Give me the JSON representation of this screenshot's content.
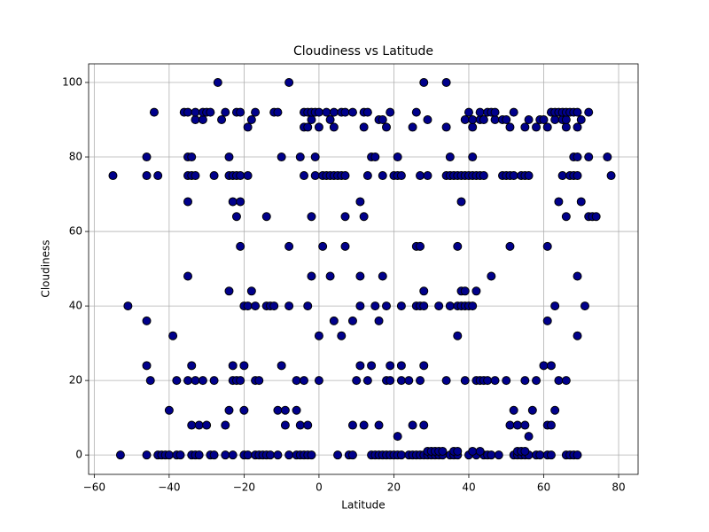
{
  "chart_data": {
    "type": "scatter",
    "title": "Cloudiness vs Latitude",
    "x_label": "Latitude",
    "y_label": "Cloudiness",
    "color": "#00008b",
    "edge_color": "#000000",
    "grid": true,
    "xlim": [
      -61.5,
      85.2
    ],
    "ylim": [
      -5.2,
      105
    ],
    "xticks": [
      {
        "value": -60,
        "label": "−60"
      },
      {
        "value": -40,
        "label": "−40"
      },
      {
        "value": -20,
        "label": "−20"
      },
      0,
      20,
      40,
      60,
      80
    ],
    "yticks": [
      0,
      20,
      40,
      60,
      80,
      100
    ],
    "x": [
      -53,
      -46,
      -43,
      -42,
      -41,
      -40,
      -38,
      -37,
      -34,
      -33,
      -32,
      -29,
      -28,
      -25,
      -23,
      -20,
      -19,
      -17,
      -16,
      -15,
      -14,
      -13,
      -11,
      -8,
      -6,
      -5,
      -4,
      -3,
      -2,
      5,
      8,
      9,
      14,
      15,
      16,
      17,
      18,
      19,
      20,
      21,
      22,
      24,
      25,
      26,
      27,
      28,
      29,
      30,
      31,
      32,
      33,
      35,
      36,
      37,
      40,
      42,
      44,
      45,
      46,
      48,
      52,
      53,
      54,
      55,
      56,
      58,
      59,
      61,
      62,
      66,
      67,
      68,
      69,
      29,
      30,
      31,
      32,
      33,
      36,
      37,
      41,
      43,
      53,
      54,
      55,
      21,
      56,
      -34,
      -32,
      -30,
      -25,
      -9,
      -5,
      -3,
      9,
      12,
      16,
      25,
      28,
      51,
      53,
      55,
      61,
      62,
      -40,
      -24,
      -20,
      -11,
      -9,
      -6,
      52,
      57,
      63,
      -45,
      -38,
      -35,
      -33,
      -31,
      -28,
      -23,
      -22,
      -21,
      -17,
      -16,
      -6,
      -4,
      0,
      10,
      13,
      18,
      19,
      22,
      24,
      27,
      34,
      39,
      42,
      43,
      44,
      45,
      47,
      50,
      55,
      58,
      64,
      66,
      -46,
      -34,
      -23,
      -20,
      -10,
      11,
      14,
      19,
      22,
      28,
      60,
      62,
      -39,
      0,
      6,
      37,
      69,
      -46,
      4,
      9,
      16,
      61,
      -51,
      -20,
      -19,
      -17,
      -14,
      -13,
      -12,
      -8,
      -3,
      11,
      15,
      18,
      22,
      26,
      27,
      28,
      32,
      35,
      37,
      38,
      39,
      40,
      41,
      63,
      71,
      -24,
      -18,
      28,
      38,
      39,
      42,
      -35,
      -2,
      3,
      11,
      17,
      46,
      69,
      -21,
      -8,
      1,
      7,
      26,
      27,
      37,
      51,
      61,
      -22,
      -14,
      -2,
      7,
      12,
      66,
      72,
      73,
      74,
      -35,
      -23,
      -21,
      11,
      38,
      64,
      70,
      -55,
      -46,
      -43,
      -35,
      -34,
      -33,
      -28,
      -24,
      -23,
      -22,
      -21,
      -19,
      -4,
      -1,
      1,
      2,
      3,
      4,
      5,
      6,
      7,
      13,
      17,
      20,
      21,
      22,
      27,
      29,
      34,
      35,
      36,
      37,
      38,
      39,
      40,
      41,
      42,
      43,
      44,
      49,
      50,
      51,
      52,
      54,
      55,
      56,
      65,
      67,
      68,
      69,
      78,
      -46,
      -35,
      -34,
      -24,
      -10,
      -5,
      -1,
      14,
      15,
      21,
      35,
      41,
      68,
      69,
      72,
      77,
      -19,
      -4,
      -3,
      0,
      4,
      12,
      18,
      25,
      34,
      41,
      51,
      55,
      58,
      61,
      66,
      69,
      -33,
      -31,
      -26,
      -18,
      -2,
      3,
      16,
      17,
      29,
      39,
      41,
      43,
      44,
      47,
      49,
      50,
      56,
      59,
      60,
      63,
      65,
      66,
      70,
      -44,
      -36,
      -35,
      -33,
      -31,
      -30,
      -29,
      -25,
      -22,
      -21,
      -17,
      -12,
      -11,
      -4,
      -3,
      -2,
      -1,
      0,
      2,
      4,
      6,
      7,
      9,
      12,
      13,
      19,
      26,
      40,
      43,
      45,
      46,
      47,
      52,
      62,
      63,
      64,
      65,
      66,
      67,
      68,
      69,
      72,
      -27,
      -8,
      28,
      34
    ],
    "values": [
      0,
      0,
      0,
      0,
      0,
      0,
      0,
      0,
      0,
      0,
      0,
      0,
      0,
      0,
      0,
      0,
      0,
      0,
      0,
      0,
      0,
      0,
      0,
      0,
      0,
      0,
      0,
      0,
      0,
      0,
      0,
      0,
      0,
      0,
      0,
      0,
      0,
      0,
      0,
      0,
      0,
      0,
      0,
      0,
      0,
      0,
      0,
      0,
      0,
      0,
      0,
      0,
      0,
      0,
      0,
      0,
      0,
      0,
      0,
      0,
      0,
      0,
      0,
      0,
      0,
      0,
      0,
      0,
      0,
      0,
      0,
      0,
      0,
      1,
      1,
      1,
      1,
      1,
      1,
      1,
      1,
      1,
      1,
      1,
      1,
      5,
      5,
      8,
      8,
      8,
      8,
      8,
      8,
      8,
      8,
      8,
      8,
      8,
      8,
      8,
      8,
      8,
      8,
      8,
      12,
      12,
      12,
      12,
      12,
      12,
      12,
      12,
      12,
      20,
      20,
      20,
      20,
      20,
      20,
      20,
      20,
      20,
      20,
      20,
      20,
      20,
      20,
      20,
      20,
      20,
      20,
      20,
      20,
      20,
      20,
      20,
      20,
      20,
      20,
      20,
      20,
      20,
      20,
      20,
      20,
      20,
      24,
      24,
      24,
      24,
      24,
      24,
      24,
      24,
      24,
      24,
      24,
      24,
      32,
      32,
      32,
      32,
      32,
      36,
      36,
      36,
      36,
      36,
      40,
      40,
      40,
      40,
      40,
      40,
      40,
      40,
      40,
      40,
      40,
      40,
      40,
      40,
      40,
      40,
      40,
      40,
      40,
      40,
      40,
      40,
      40,
      40,
      40,
      44,
      44,
      44,
      44,
      44,
      44,
      48,
      48,
      48,
      48,
      48,
      48,
      48,
      56,
      56,
      56,
      56,
      56,
      56,
      56,
      56,
      56,
      64,
      64,
      64,
      64,
      64,
      64,
      64,
      64,
      64,
      68,
      68,
      68,
      68,
      68,
      68,
      68,
      75,
      75,
      75,
      75,
      75,
      75,
      75,
      75,
      75,
      75,
      75,
      75,
      75,
      75,
      75,
      75,
      75,
      75,
      75,
      75,
      75,
      75,
      75,
      75,
      75,
      75,
      75,
      75,
      75,
      75,
      75,
      75,
      75,
      75,
      75,
      75,
      75,
      75,
      75,
      75,
      75,
      75,
      75,
      75,
      75,
      75,
      75,
      75,
      75,
      75,
      75,
      80,
      80,
      80,
      80,
      80,
      80,
      80,
      80,
      80,
      80,
      80,
      80,
      80,
      80,
      80,
      80,
      88,
      88,
      88,
      88,
      88,
      88,
      88,
      88,
      88,
      88,
      88,
      88,
      88,
      88,
      88,
      88,
      90,
      90,
      90,
      90,
      90,
      90,
      90,
      90,
      90,
      90,
      90,
      90,
      90,
      90,
      90,
      90,
      90,
      90,
      90,
      90,
      90,
      90,
      90,
      92,
      92,
      92,
      92,
      92,
      92,
      92,
      92,
      92,
      92,
      92,
      92,
      92,
      92,
      92,
      92,
      92,
      92,
      92,
      92,
      92,
      92,
      92,
      92,
      92,
      92,
      92,
      92,
      92,
      92,
      92,
      92,
      92,
      92,
      92,
      92,
      92,
      92,
      92,
      92,
      92,
      92,
      100,
      100,
      100,
      100
    ]
  }
}
